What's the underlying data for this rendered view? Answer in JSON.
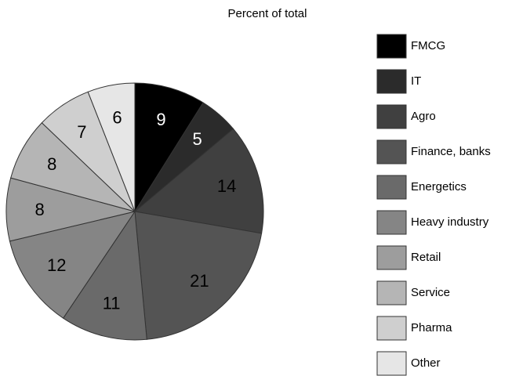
{
  "chart_data": {
    "type": "pie",
    "title": "Percent of total",
    "categories": [
      "FMCG",
      "IT",
      "Agro",
      "Finance, banks",
      "Energetics",
      "Heavy industry",
      "Retail",
      "Service",
      "Pharma",
      "Other"
    ],
    "values": [
      9,
      5,
      14,
      21,
      11,
      12,
      8,
      8,
      7,
      6
    ],
    "colors": [
      "#000000",
      "#2b2b2b",
      "#404040",
      "#545454",
      "#6a6a6a",
      "#858585",
      "#9d9d9d",
      "#b5b5b5",
      "#cfcfcf",
      "#e6e6e6"
    ],
    "legend": "right"
  }
}
